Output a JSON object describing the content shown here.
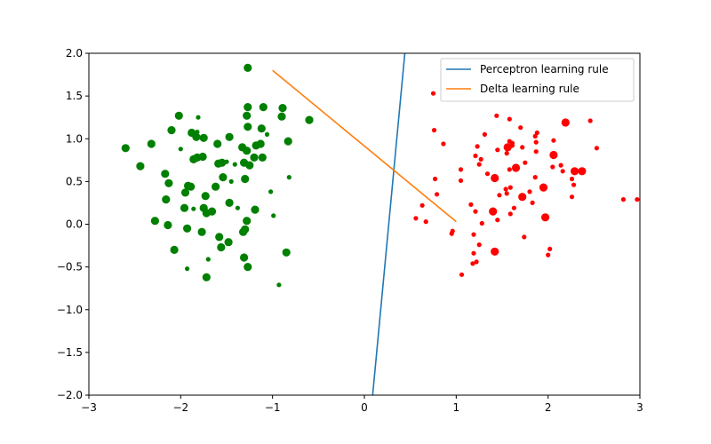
{
  "chart_data": {
    "type": "scatter",
    "title": "",
    "xlabel": "",
    "ylabel": "",
    "xlim": [
      -3,
      3
    ],
    "ylim": [
      -2,
      2
    ],
    "xticks": [
      -3,
      -2,
      -1,
      0,
      1,
      2,
      3
    ],
    "yticks": [
      -2.0,
      -1.5,
      -1.0,
      -0.5,
      0.0,
      0.5,
      1.0,
      1.5,
      2.0
    ],
    "xtick_labels": [
      "−3",
      "−2",
      "−1",
      "0",
      "1",
      "2",
      "3"
    ],
    "ytick_labels": [
      "−2.0",
      "−1.5",
      "−1.0",
      "−0.5",
      "0.0",
      "0.5",
      "1.0",
      "1.5",
      "2.0"
    ],
    "grid": false,
    "legend_position": "top-right",
    "lines": [
      {
        "name": "Perceptron learning rule",
        "color": "#1f77b4",
        "x": [
          0.09,
          0.44
        ],
        "y": [
          -2.0,
          2.0
        ]
      },
      {
        "name": "Delta learning rule",
        "color": "#ff7f0e",
        "x": [
          -1.0,
          1.0
        ],
        "y": [
          1.8,
          0.03
        ]
      }
    ],
    "scatter_series": [
      {
        "class": "green",
        "color": "#008000",
        "points": [
          [
            -1.27,
            1.83,
            "L"
          ],
          [
            -1.1,
            1.37,
            "L"
          ],
          [
            -0.89,
            1.36,
            "L"
          ],
          [
            -1.27,
            1.37,
            "L"
          ],
          [
            -0.9,
            1.26,
            "L"
          ],
          [
            -1.28,
            1.27,
            "L"
          ],
          [
            -0.6,
            1.22,
            "L"
          ],
          [
            -2.02,
            1.27,
            "L"
          ],
          [
            -1.81,
            1.25,
            "S"
          ],
          [
            -1.27,
            1.14,
            "L"
          ],
          [
            -1.12,
            1.12,
            "L"
          ],
          [
            -2.1,
            1.1,
            "L"
          ],
          [
            -1.88,
            1.07,
            "L"
          ],
          [
            -1.82,
            1.08,
            "S"
          ],
          [
            -1.83,
            1.02,
            "L"
          ],
          [
            -1.75,
            1.01,
            "L"
          ],
          [
            -1.47,
            1.02,
            "L"
          ],
          [
            -1.06,
            1.05,
            "S"
          ],
          [
            -0.83,
            0.97,
            "L"
          ],
          [
            -2.32,
            0.94,
            "L"
          ],
          [
            -2.6,
            0.89,
            "L"
          ],
          [
            -1.6,
            0.94,
            "L"
          ],
          [
            -1.33,
            0.9,
            "L"
          ],
          [
            -1.18,
            0.92,
            "L"
          ],
          [
            -1.13,
            0.94,
            "L"
          ],
          [
            -2.0,
            0.88,
            "S"
          ],
          [
            -1.28,
            0.86,
            "L"
          ],
          [
            -1.82,
            0.78,
            "L"
          ],
          [
            -1.76,
            0.79,
            "L"
          ],
          [
            -1.86,
            0.76,
            "L"
          ],
          [
            -1.55,
            0.72,
            "L"
          ],
          [
            -1.2,
            0.78,
            "L"
          ],
          [
            -1.11,
            0.78,
            "L"
          ],
          [
            -1.5,
            0.73,
            "S"
          ],
          [
            -1.41,
            0.7,
            "S"
          ],
          [
            -1.31,
            0.72,
            "L"
          ],
          [
            -1.25,
            0.69,
            "L"
          ],
          [
            -2.44,
            0.68,
            "L"
          ],
          [
            -2.17,
            0.59,
            "L"
          ],
          [
            -1.59,
            0.71,
            "L"
          ],
          [
            -1.54,
            0.55,
            "L"
          ],
          [
            -1.3,
            0.53,
            "L"
          ],
          [
            -0.82,
            0.55,
            "S"
          ],
          [
            -2.13,
            0.48,
            "L"
          ],
          [
            -1.92,
            0.45,
            "L"
          ],
          [
            -1.89,
            0.44,
            "L"
          ],
          [
            -1.62,
            0.44,
            "L"
          ],
          [
            -1.95,
            0.37,
            "L"
          ],
          [
            -1.45,
            0.5,
            "S"
          ],
          [
            -1.02,
            0.38,
            "S"
          ],
          [
            -1.73,
            0.33,
            "L"
          ],
          [
            -2.16,
            0.29,
            "L"
          ],
          [
            -1.47,
            0.25,
            "L"
          ],
          [
            -1.96,
            0.19,
            "L"
          ],
          [
            -1.86,
            0.18,
            "S"
          ],
          [
            -1.75,
            0.19,
            "L"
          ],
          [
            -1.66,
            0.15,
            "L"
          ],
          [
            -1.38,
            0.19,
            "S"
          ],
          [
            -1.19,
            0.17,
            "L"
          ],
          [
            -1.72,
            0.13,
            "L"
          ],
          [
            -0.99,
            0.1,
            "S"
          ],
          [
            -2.28,
            0.04,
            "L"
          ],
          [
            -1.28,
            0.04,
            "L"
          ],
          [
            -2.14,
            -0.01,
            "L"
          ],
          [
            -1.93,
            -0.05,
            "L"
          ],
          [
            -1.3,
            -0.06,
            "L"
          ],
          [
            -1.32,
            -0.09,
            "L"
          ],
          [
            -1.77,
            -0.09,
            "L"
          ],
          [
            -1.58,
            -0.15,
            "L"
          ],
          [
            -1.48,
            -0.21,
            "L"
          ],
          [
            -1.56,
            -0.27,
            "L"
          ],
          [
            -2.07,
            -0.3,
            "L"
          ],
          [
            -0.85,
            -0.33,
            "L"
          ],
          [
            -1.31,
            -0.39,
            "L"
          ],
          [
            -1.7,
            -0.41,
            "S"
          ],
          [
            -1.27,
            -0.5,
            "L"
          ],
          [
            -1.93,
            -0.52,
            "S"
          ],
          [
            -1.72,
            -0.62,
            "L"
          ],
          [
            -0.93,
            -0.71,
            "S"
          ]
        ]
      },
      {
        "class": "red",
        "color": "#ff0000",
        "points": [
          [
            0.75,
            1.53,
            "S"
          ],
          [
            1.44,
            1.27,
            "S"
          ],
          [
            1.58,
            1.23,
            "S"
          ],
          [
            2.19,
            1.19,
            "L"
          ],
          [
            2.46,
            1.21,
            "S"
          ],
          [
            1.7,
            1.13,
            "S"
          ],
          [
            1.31,
            1.05,
            "S"
          ],
          [
            0.76,
            1.1,
            "S"
          ],
          [
            1.86,
            1.03,
            "S"
          ],
          [
            1.88,
            1.07,
            "S"
          ],
          [
            2.06,
            0.98,
            "S"
          ],
          [
            1.87,
            0.96,
            "S"
          ],
          [
            1.58,
            0.97,
            "S"
          ],
          [
            1.61,
            0.95,
            "S"
          ],
          [
            0.86,
            0.94,
            "S"
          ],
          [
            1.23,
            0.91,
            "S"
          ],
          [
            1.56,
            0.9,
            "L"
          ],
          [
            1.61,
            0.92,
            "S"
          ],
          [
            1.72,
            0.9,
            "S"
          ],
          [
            1.45,
            0.87,
            "S"
          ],
          [
            2.53,
            0.89,
            "S"
          ],
          [
            1.87,
            0.85,
            "S"
          ],
          [
            1.55,
            0.83,
            "S"
          ],
          [
            1.21,
            0.8,
            "S"
          ],
          [
            2.06,
            0.81,
            "L"
          ],
          [
            1.27,
            0.76,
            "S"
          ],
          [
            1.75,
            0.72,
            "S"
          ],
          [
            1.25,
            0.7,
            "S"
          ],
          [
            2.14,
            0.69,
            "S"
          ],
          [
            1.65,
            0.66,
            "L"
          ],
          [
            2.05,
            0.67,
            "S"
          ],
          [
            1.58,
            0.64,
            "S"
          ],
          [
            1.05,
            0.64,
            "S"
          ],
          [
            2.16,
            0.62,
            "S"
          ],
          [
            2.29,
            0.62,
            "L"
          ],
          [
            2.37,
            0.62,
            "L"
          ],
          [
            1.34,
            0.59,
            "S"
          ],
          [
            1.86,
            0.55,
            "S"
          ],
          [
            1.42,
            0.54,
            "L"
          ],
          [
            2.26,
            0.53,
            "S"
          ],
          [
            0.77,
            0.53,
            "S"
          ],
          [
            1.05,
            0.51,
            "S"
          ],
          [
            2.28,
            0.46,
            "S"
          ],
          [
            1.95,
            0.43,
            "L"
          ],
          [
            1.59,
            0.43,
            "S"
          ],
          [
            1.54,
            0.41,
            "S"
          ],
          [
            1.8,
            0.38,
            "S"
          ],
          [
            1.55,
            0.36,
            "S"
          ],
          [
            0.79,
            0.35,
            "S"
          ],
          [
            1.47,
            0.34,
            "S"
          ],
          [
            1.72,
            0.32,
            "L"
          ],
          [
            2.26,
            0.32,
            "S"
          ],
          [
            2.82,
            0.29,
            "S"
          ],
          [
            2.97,
            0.29,
            "S"
          ],
          [
            1.83,
            0.25,
            "S"
          ],
          [
            1.16,
            0.23,
            "S"
          ],
          [
            0.63,
            0.22,
            "S"
          ],
          [
            1.63,
            0.19,
            "S"
          ],
          [
            1.4,
            0.15,
            "L"
          ],
          [
            1.21,
            0.15,
            "S"
          ],
          [
            1.59,
            0.12,
            "S"
          ],
          [
            1.97,
            0.08,
            "L"
          ],
          [
            0.56,
            0.07,
            "S"
          ],
          [
            0.67,
            0.03,
            "S"
          ],
          [
            1.45,
            0.05,
            "S"
          ],
          [
            1.28,
            0.01,
            "S"
          ],
          [
            0.96,
            -0.08,
            "S"
          ],
          [
            0.95,
            -0.11,
            "S"
          ],
          [
            1.19,
            -0.12,
            "S"
          ],
          [
            1.74,
            -0.15,
            "S"
          ],
          [
            1.25,
            -0.24,
            "S"
          ],
          [
            2.02,
            -0.29,
            "S"
          ],
          [
            1.42,
            -0.32,
            "L"
          ],
          [
            2.0,
            -0.36,
            "S"
          ],
          [
            1.19,
            -0.34,
            "S"
          ],
          [
            1.22,
            -0.44,
            "S"
          ],
          [
            1.18,
            -0.46,
            "S"
          ],
          [
            1.06,
            -0.59,
            "S"
          ]
        ]
      }
    ]
  }
}
